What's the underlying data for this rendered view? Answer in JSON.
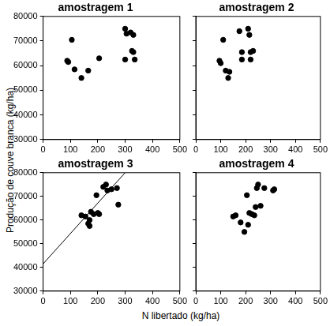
{
  "ylabel": "Produção de couve branca (kg/ha)",
  "xlabel": "N libertado (kg/ha)",
  "chart_data": [
    {
      "type": "scatter",
      "title": "amostragem 1",
      "grid": false,
      "marker": "circle",
      "xlim": [
        0,
        500
      ],
      "xticks": [
        0,
        100,
        200,
        300,
        400,
        500
      ],
      "ylim": [
        30000,
        80000
      ],
      "yticks": [
        30000,
        40000,
        50000,
        60000,
        70000,
        80000
      ],
      "series": [
        {
          "color": "#000000",
          "type": "scatter",
          "x": [
            88,
            92,
            105,
            115,
            140,
            165,
            205,
            300,
            305,
            300,
            320,
            325,
            330,
            330,
            335
          ],
          "values": [
            62000,
            61500,
            70500,
            58500,
            55000,
            58000,
            63000,
            75000,
            73000,
            62500,
            73500,
            66000,
            72500,
            65500,
            62500
          ]
        }
      ]
    },
    {
      "type": "scatter",
      "title": "amostragem 2",
      "grid": false,
      "marker": "circle",
      "tick_labels": "x",
      "xlim": [
        0,
        500
      ],
      "xticks": [
        0,
        100,
        200,
        300,
        400,
        500
      ],
      "ylim": [
        30000,
        80000
      ],
      "yticks": [
        30000,
        40000,
        50000,
        60000,
        70000,
        80000
      ],
      "series": [
        {
          "color": "#000000",
          "type": "scatter",
          "x": [
            95,
            100,
            110,
            120,
            130,
            135,
            175,
            185,
            185,
            210,
            215,
            220,
            230,
            220
          ],
          "values": [
            62000,
            61000,
            70500,
            58000,
            55000,
            57500,
            74000,
            65500,
            62500,
            75000,
            72500,
            65500,
            66000,
            62500
          ]
        }
      ]
    },
    {
      "type": "scatter",
      "title": "amostragem 3",
      "grid": false,
      "marker": "circle",
      "xlim": [
        0,
        500
      ],
      "xticks": [
        0,
        100,
        200,
        300,
        400,
        500
      ],
      "ylim": [
        30000,
        80000
      ],
      "yticks": [
        30000,
        40000,
        50000,
        60000,
        70000,
        80000
      ],
      "series": [
        {
          "color": "#000000",
          "type": "scatter",
          "x": [
            140,
            155,
            165,
            170,
            170,
            175,
            185,
            195,
            200,
            205,
            220,
            230,
            235,
            250,
            270,
            275
          ],
          "values": [
            62000,
            61500,
            58500,
            57500,
            60000,
            63500,
            62500,
            70500,
            63000,
            62500,
            74000,
            75000,
            72500,
            73000,
            73500,
            66500
          ]
        },
        {
          "color": "#000000",
          "type": "line",
          "line_style": "solid",
          "x": [
            0,
            300
          ],
          "values": [
            41500,
            80000
          ]
        }
      ]
    },
    {
      "type": "scatter",
      "title": "amostragem 4",
      "grid": false,
      "marker": "circle",
      "tick_labels": "x",
      "xlim": [
        0,
        500
      ],
      "xticks": [
        0,
        100,
        200,
        300,
        400,
        500
      ],
      "ylim": [
        30000,
        80000
      ],
      "yticks": [
        30000,
        40000,
        50000,
        60000,
        70000,
        80000
      ],
      "series": [
        {
          "color": "#000000",
          "type": "scatter",
          "x": [
            150,
            160,
            180,
            195,
            205,
            210,
            215,
            225,
            235,
            240,
            245,
            250,
            260,
            275,
            310,
            315
          ],
          "values": [
            61500,
            62000,
            59000,
            55000,
            70500,
            58000,
            63000,
            62500,
            62000,
            65500,
            73500,
            75000,
            66000,
            73500,
            72500,
            73000
          ]
        }
      ]
    }
  ]
}
